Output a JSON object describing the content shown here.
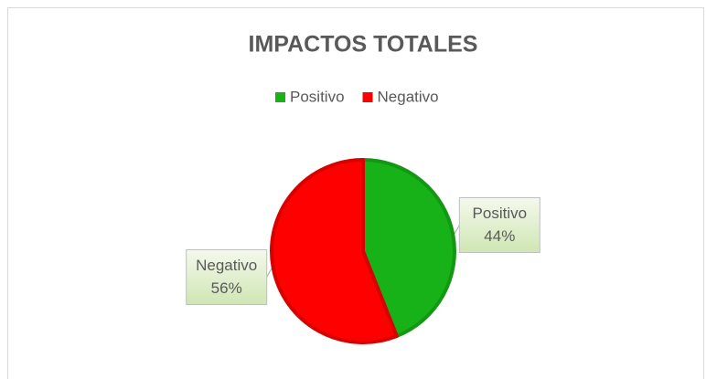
{
  "chart_data": {
    "type": "pie",
    "title": "IMPACTOS TOTALES",
    "categories": [
      "Positivo",
      "Negativo"
    ],
    "values": [
      44,
      56
    ],
    "value_labels": [
      "44%",
      "56%"
    ],
    "colors": [
      "#17b217",
      "#ff0000"
    ],
    "legend": "top"
  }
}
